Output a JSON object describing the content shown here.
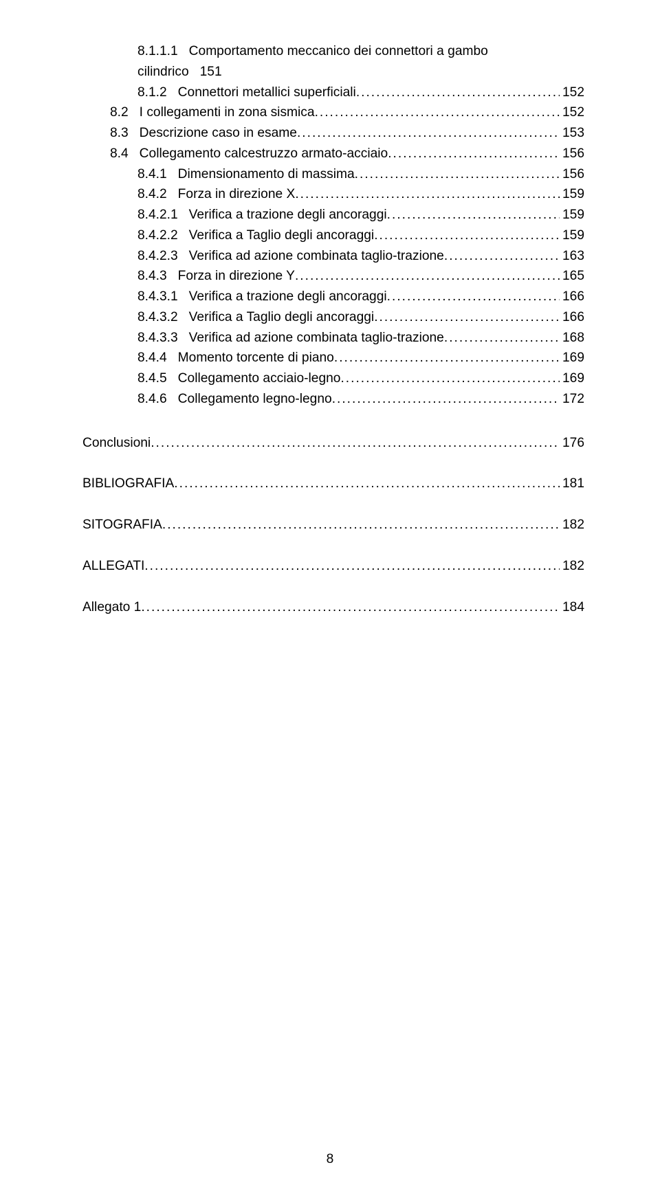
{
  "font": {
    "family": "Arial",
    "size_pt": 14,
    "color": "#000000"
  },
  "background_color": "#ffffff",
  "page_number": "8",
  "toc": [
    {
      "indent": 2,
      "num": "8.1.1.1",
      "title": "Comportamento meccanico dei connettori a gambo",
      "continuation": "cilindrico",
      "page_inline": "151",
      "wrap": true
    },
    {
      "indent": 2,
      "num": "8.1.2",
      "title": "Connettori metallici superficiali",
      "page": "152"
    },
    {
      "indent": 1,
      "num": "8.2",
      "title": "I collegamenti in zona sismica",
      "page": "152"
    },
    {
      "indent": 1,
      "num": "8.3",
      "title": "Descrizione caso in esame",
      "page": "153"
    },
    {
      "indent": 1,
      "num": "8.4",
      "title": "Collegamento calcestruzzo armato-acciaio",
      "page": "156"
    },
    {
      "indent": 2,
      "num": "8.4.1",
      "title": "Dimensionamento di massima",
      "page": "156"
    },
    {
      "indent": 2,
      "num": "8.4.2",
      "title": "Forza in direzione X",
      "page": "159"
    },
    {
      "indent": 2,
      "num": "8.4.2.1",
      "title": "Verifica a trazione degli ancoraggi",
      "page": "159"
    },
    {
      "indent": 2,
      "num": "8.4.2.2",
      "title": "Verifica a Taglio degli ancoraggi",
      "page": "159"
    },
    {
      "indent": 2,
      "num": "8.4.2.3",
      "title": "Verifica ad azione combinata taglio-trazione",
      "page": "163"
    },
    {
      "indent": 2,
      "num": "8.4.3",
      "title": "Forza in direzione Y",
      "page": "165"
    },
    {
      "indent": 2,
      "num": "8.4.3.1",
      "title": "Verifica a trazione degli ancoraggi",
      "page": "166"
    },
    {
      "indent": 2,
      "num": "8.4.3.2",
      "title": "Verifica a Taglio degli ancoraggi",
      "page": "166"
    },
    {
      "indent": 2,
      "num": "8.4.3.3",
      "title": "Verifica ad azione combinata taglio-trazione",
      "page": "168"
    },
    {
      "indent": 2,
      "num": "8.4.4",
      "title": "Momento torcente di piano",
      "page": "169"
    },
    {
      "indent": 2,
      "num": "8.4.5",
      "title": "Collegamento acciaio-legno",
      "page": "169"
    },
    {
      "indent": 2,
      "num": "8.4.6",
      "title": "Collegamento legno-legno",
      "page": "172"
    },
    {
      "spacer": true
    },
    {
      "indent": 0,
      "num": "",
      "title": "Conclusioni",
      "page": "176"
    },
    {
      "spacer_small": true
    },
    {
      "indent": 0,
      "num": "",
      "title": "BIBLIOGRAFIA",
      "page": "181"
    },
    {
      "spacer_small": true
    },
    {
      "indent": 0,
      "num": "",
      "title": "SITOGRAFIA",
      "page": "182"
    },
    {
      "spacer_small": true
    },
    {
      "indent": 0,
      "num": "",
      "title": "ALLEGATI",
      "page": "182"
    },
    {
      "spacer_small": true
    },
    {
      "indent": 0,
      "num": "",
      "title": "Allegato 1",
      "page": "184"
    },
    {
      "hidden_extra_page": "184"
    }
  ]
}
